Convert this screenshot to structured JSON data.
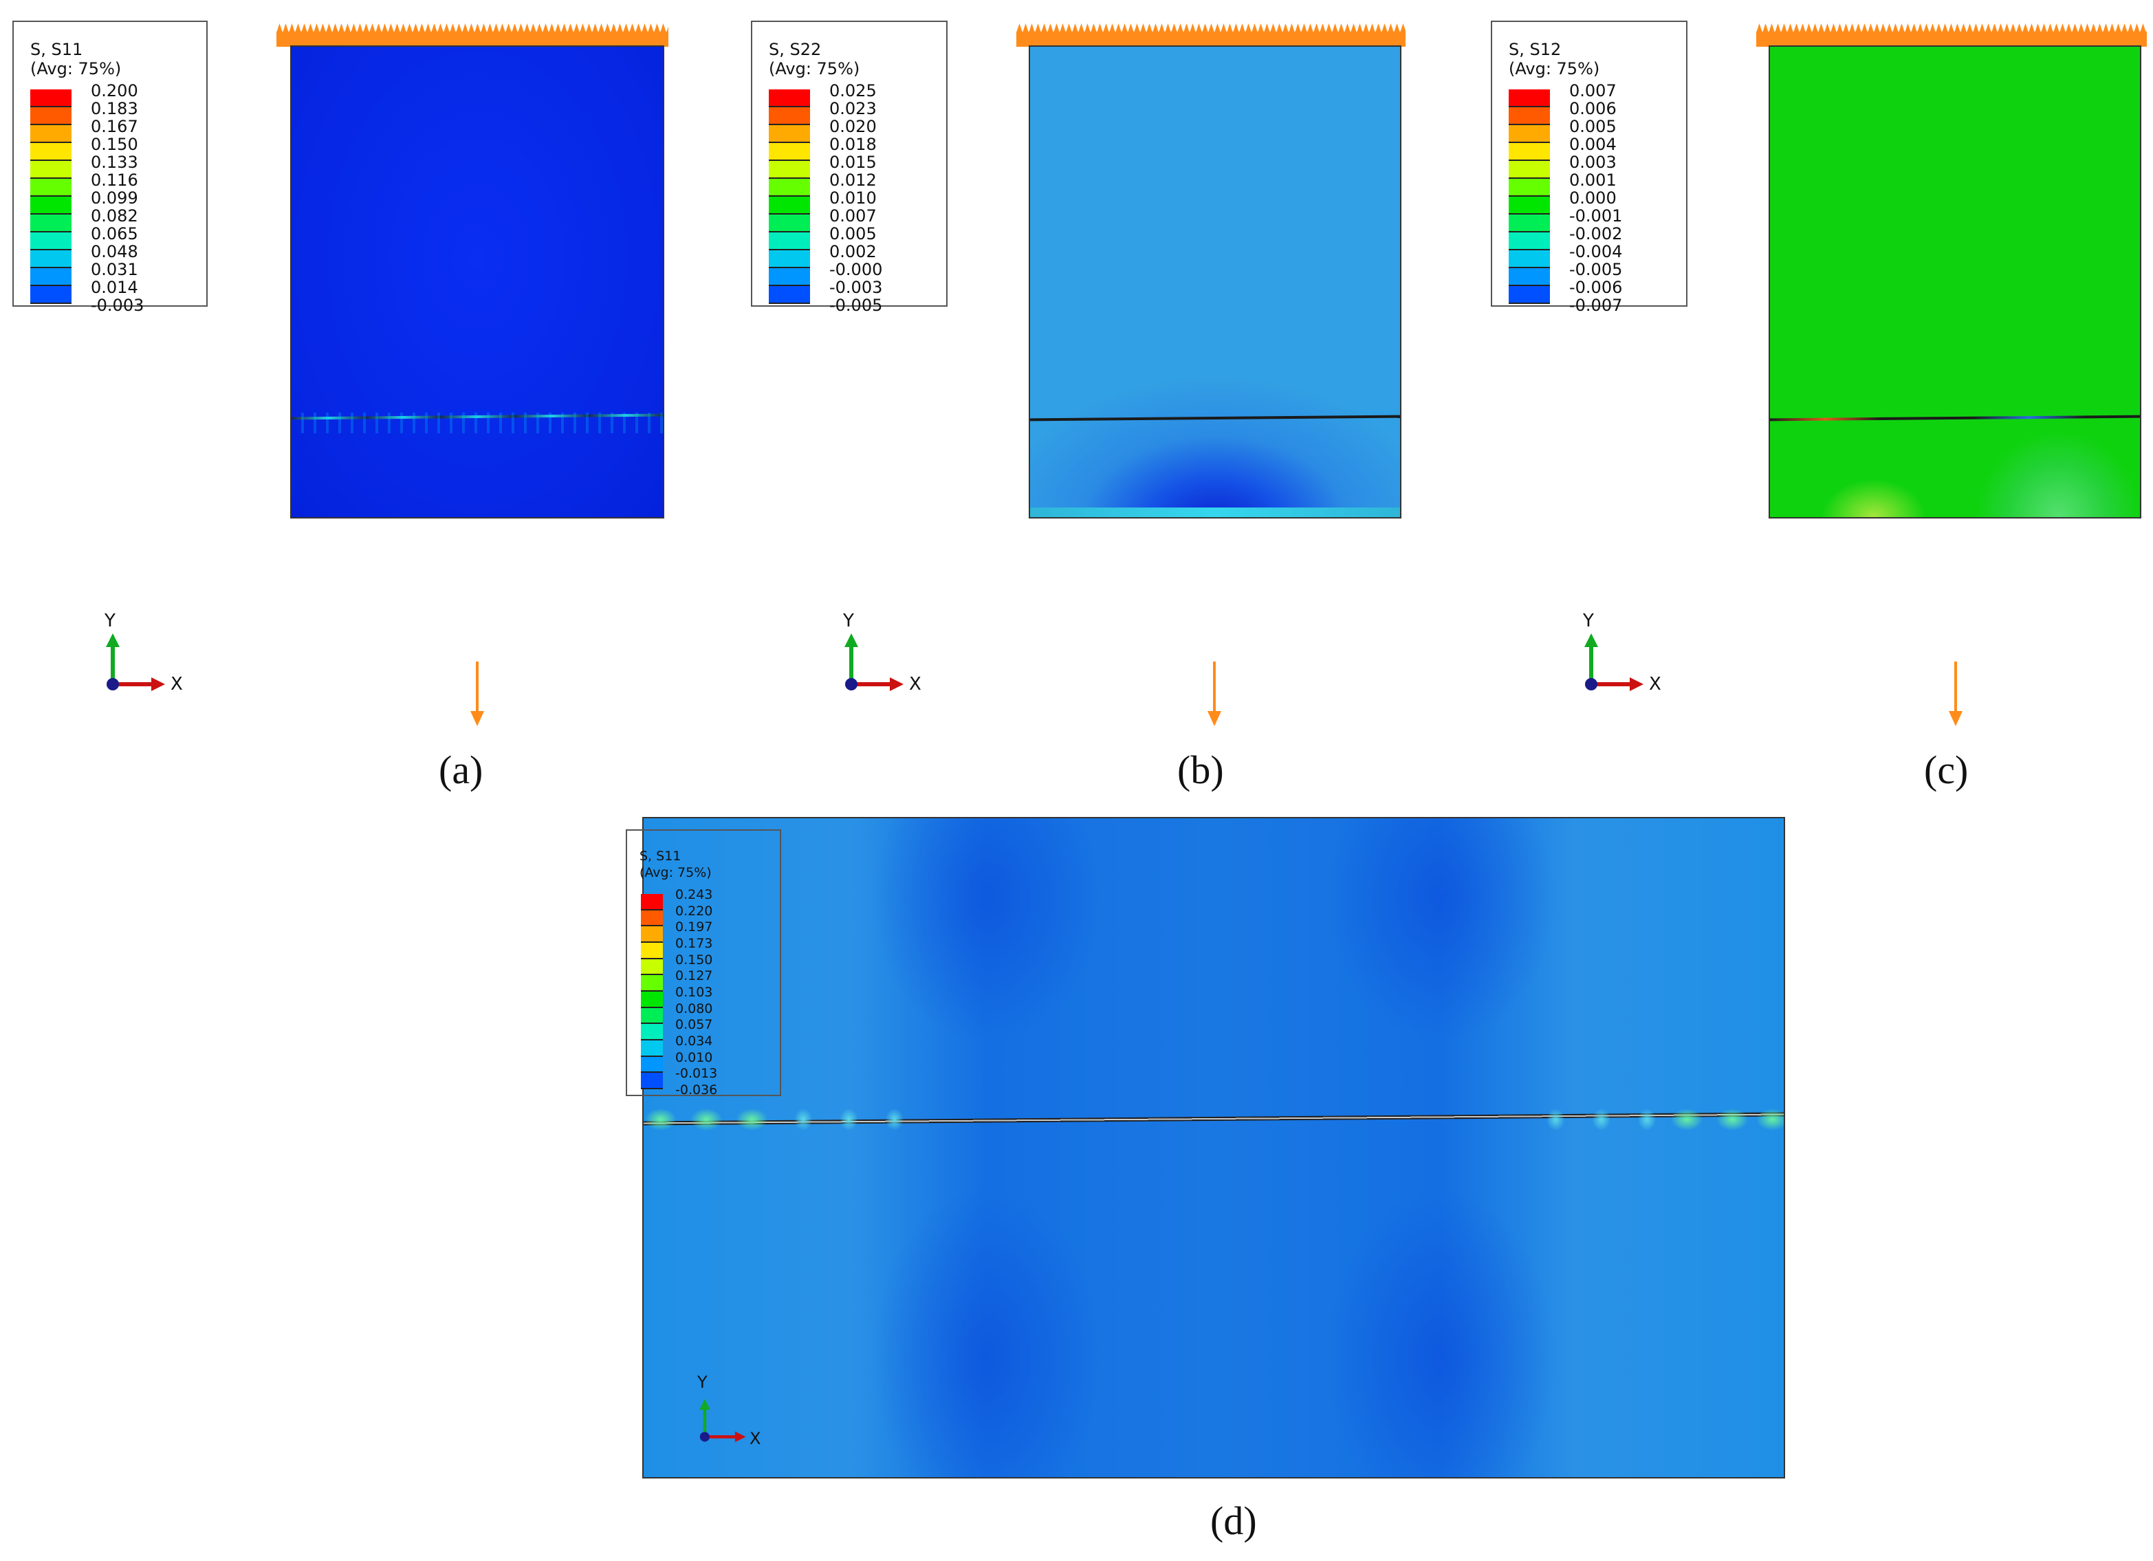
{
  "colors": {
    "ramp": [
      "#ff0000",
      "#ff5a00",
      "#ffaa00",
      "#ffe600",
      "#c8ff00",
      "#66ff00",
      "#00e600",
      "#00ee55",
      "#00eebb",
      "#00c8ee",
      "#0096ff",
      "#0050ff",
      "#0000ff"
    ],
    "load": "#ff8c1a",
    "x_axis": "#cc1111",
    "y_axis": "#11aa22"
  },
  "panels": [
    {
      "id": "a",
      "legend": {
        "title": "S, S11",
        "avg": "(Avg: 75%)",
        "values": [
          "0.200",
          "0.183",
          "0.167",
          "0.150",
          "0.133",
          "0.116",
          "0.099",
          "0.082",
          "0.065",
          "0.048",
          "0.031",
          "0.014",
          "-0.003"
        ]
      },
      "field": "s11",
      "caption": "(a)",
      "axes": {
        "y": "Y",
        "x": "X"
      }
    },
    {
      "id": "b",
      "legend": {
        "title": "S, S22",
        "avg": "(Avg: 75%)",
        "values": [
          "0.025",
          "0.023",
          "0.020",
          "0.018",
          "0.015",
          "0.012",
          "0.010",
          "0.007",
          "0.005",
          "0.002",
          "-0.000",
          "-0.003",
          "-0.005"
        ]
      },
      "field": "s22",
      "caption": "(b)",
      "axes": {
        "y": "Y",
        "x": "X"
      }
    },
    {
      "id": "c",
      "legend": {
        "title": "S, S12",
        "avg": "(Avg: 75%)",
        "values": [
          "0.007",
          "0.006",
          "0.005",
          "0.004",
          "0.003",
          "0.001",
          "0.000",
          "-0.001",
          "-0.002",
          "-0.004",
          "-0.005",
          "-0.006",
          "-0.007"
        ]
      },
      "field": "s12",
      "caption": "(c)",
      "axes": {
        "y": "Y",
        "x": "X"
      }
    }
  ],
  "detail": {
    "legend": {
      "title": "S, S11",
      "avg": "(Avg: 75%)",
      "values": [
        "0.243",
        "0.220",
        "0.197",
        "0.173",
        "0.150",
        "0.127",
        "0.103",
        "0.080",
        "0.057",
        "0.034",
        "0.010",
        "-0.013",
        "-0.036"
      ]
    },
    "caption": "(d)",
    "axes": {
      "y": "Y",
      "x": "X"
    }
  }
}
